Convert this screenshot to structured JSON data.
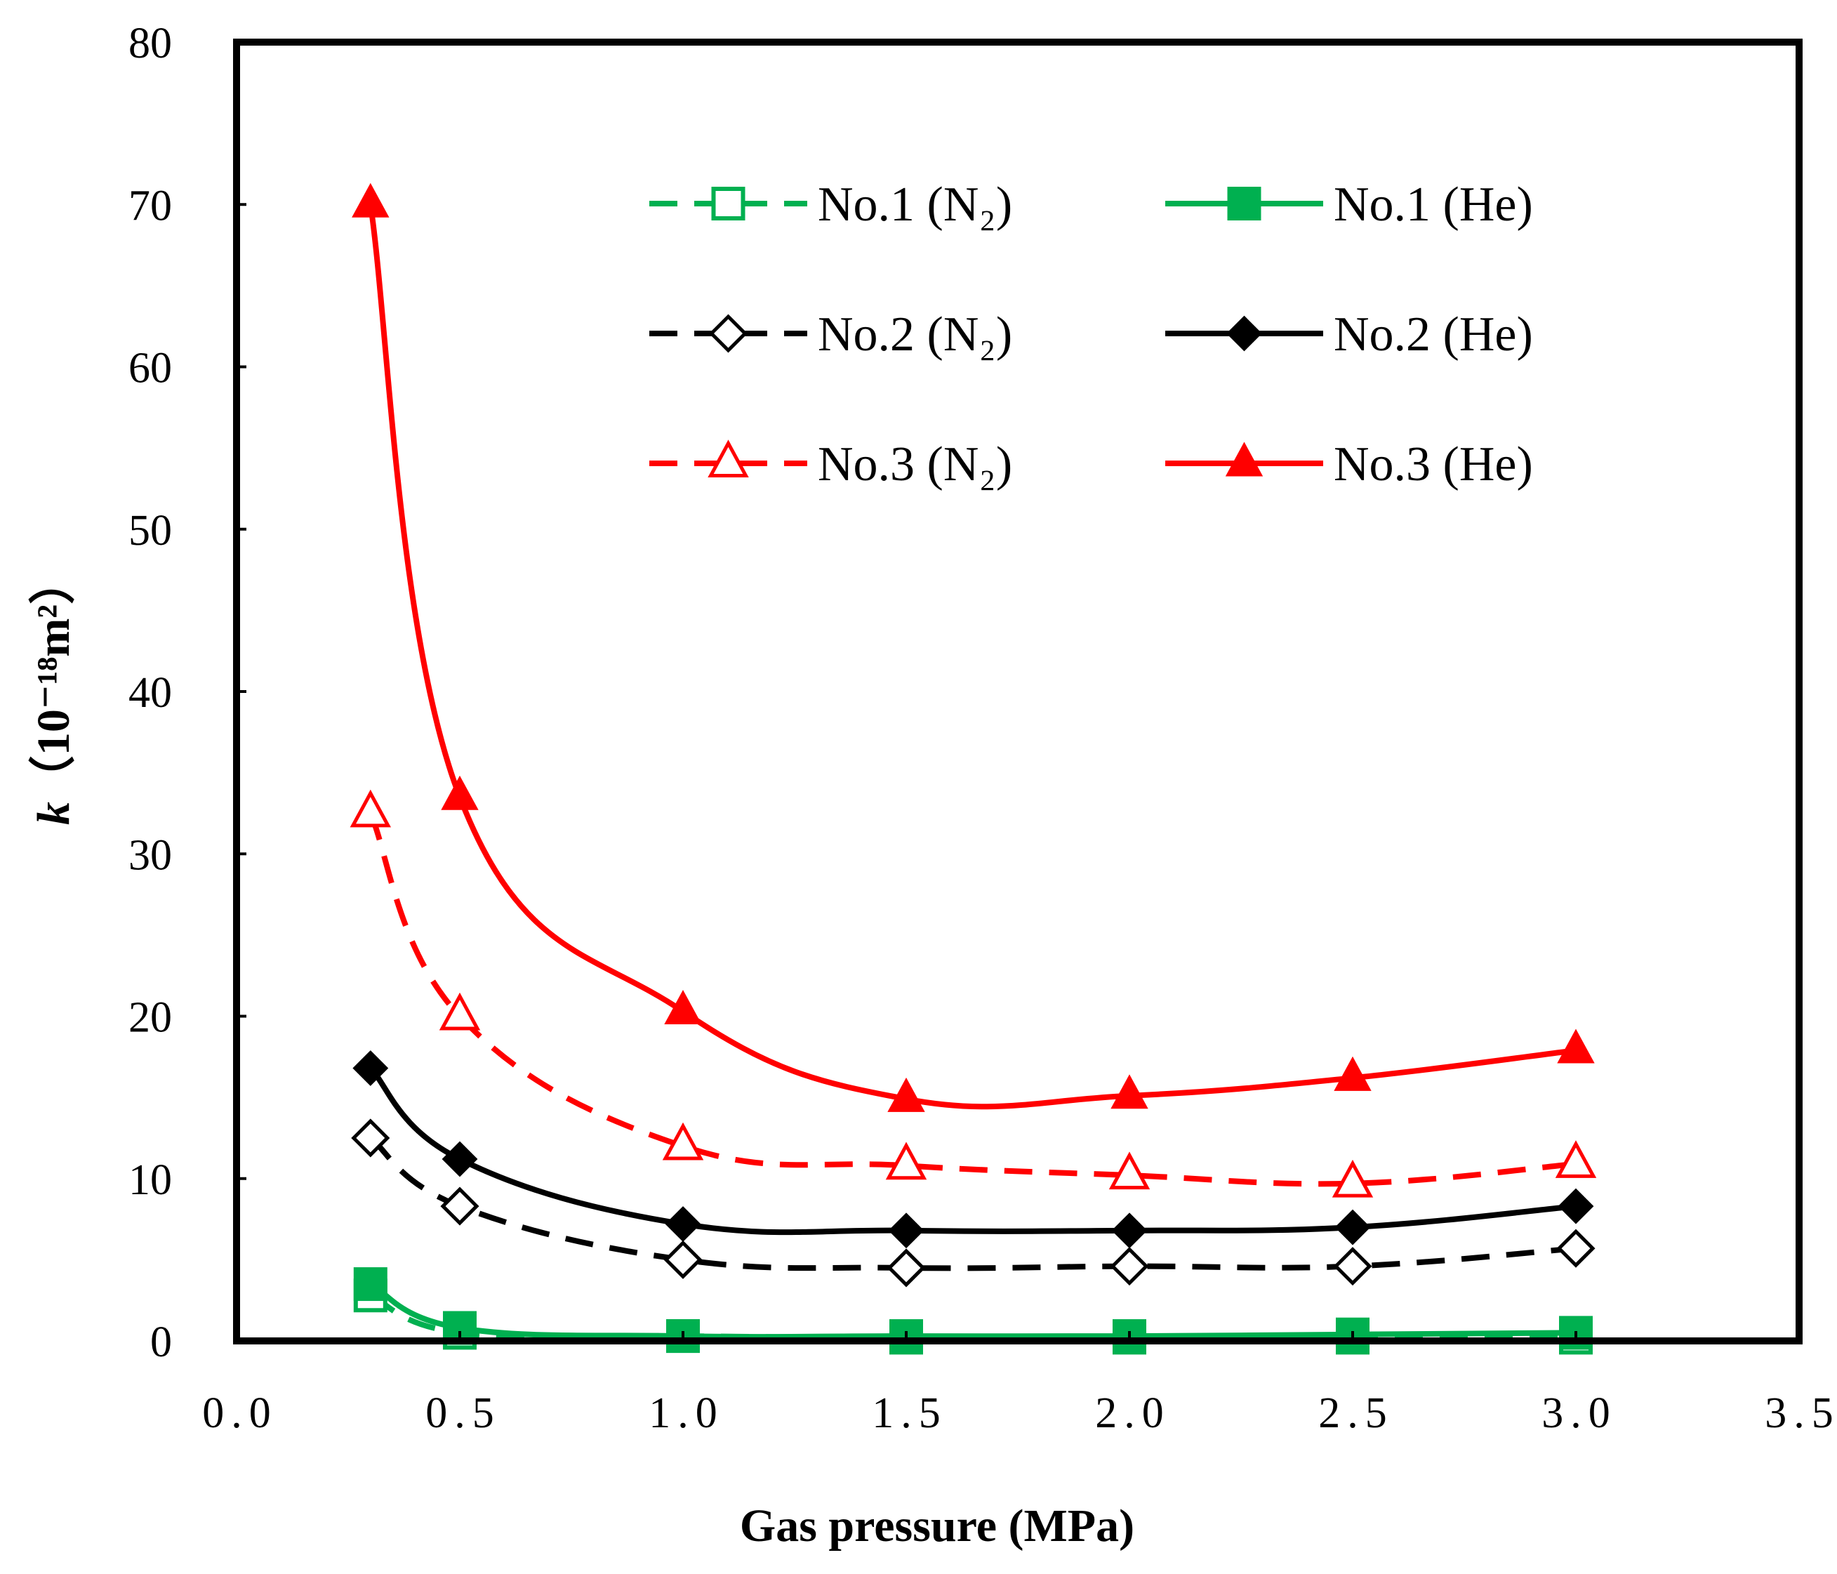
{
  "chart_data": {
    "type": "line",
    "title": "",
    "xlabel": "Gas pressure (MPa)",
    "ylabel_italic": "k",
    "ylabel": "（10⁻¹⁸m²）",
    "xlim": [
      0.0,
      3.5
    ],
    "ylim": [
      0,
      80
    ],
    "xticks": [
      0.0,
      0.5,
      1.0,
      1.5,
      2.0,
      2.5,
      3.0,
      3.5
    ],
    "xtick_labels": [
      "0.0",
      "0.5",
      "1.0",
      "1.5",
      "2.0",
      "2.5",
      "3.0",
      "3.5"
    ],
    "yticks": [
      0,
      10,
      20,
      30,
      40,
      50,
      60,
      70,
      80
    ],
    "ytick_labels": [
      "0",
      "10",
      "20",
      "30",
      "40",
      "50",
      "60",
      "70",
      "80"
    ],
    "grid": false,
    "legend_position": "top-right",
    "x": [
      0.3,
      0.5,
      1.0,
      1.5,
      2.0,
      2.5,
      3.0
    ],
    "series": [
      {
        "name": "No.1 (N₂)",
        "color": "#00B050",
        "dashed": true,
        "marker": "square-open",
        "values": [
          2.8,
          0.5,
          0.3,
          0.2,
          0.2,
          0.2,
          0.2
        ]
      },
      {
        "name": "No.1 (He)",
        "color": "#00B050",
        "dashed": false,
        "marker": "square-filled",
        "values": [
          3.5,
          0.8,
          0.3,
          0.3,
          0.3,
          0.4,
          0.5
        ]
      },
      {
        "name": "No.2 (N₂)",
        "color": "#000000",
        "dashed": true,
        "marker": "diamond-open",
        "values": [
          12.5,
          8.3,
          5.0,
          4.5,
          4.6,
          4.6,
          5.7
        ]
      },
      {
        "name": "No.2 (He)",
        "color": "#000000",
        "dashed": false,
        "marker": "diamond-filled",
        "values": [
          16.8,
          11.2,
          7.2,
          6.8,
          6.8,
          7.0,
          8.3
        ]
      },
      {
        "name": "No.3 (N₂)",
        "color": "#FF0000",
        "dashed": true,
        "marker": "triangle-open",
        "values": [
          32.5,
          20.0,
          12.0,
          10.8,
          10.2,
          9.7,
          10.9
        ]
      },
      {
        "name": "No.3 (He)",
        "color": "#FF0000",
        "dashed": false,
        "marker": "triangle-filled",
        "values": [
          70.0,
          33.5,
          20.3,
          14.9,
          15.1,
          16.2,
          17.9
        ]
      }
    ],
    "legend_order": [
      0,
      1,
      2,
      3,
      4,
      5
    ]
  }
}
